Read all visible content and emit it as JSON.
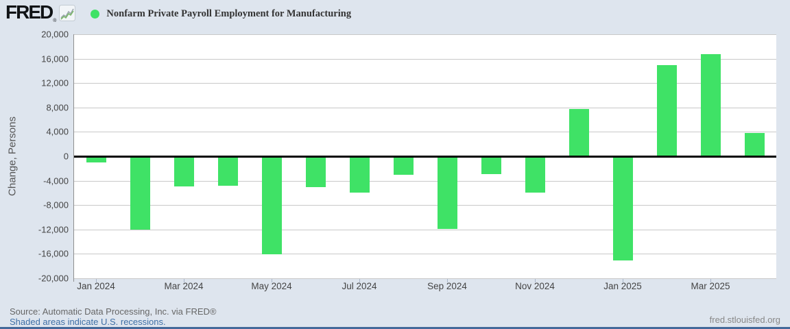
{
  "header": {
    "logo_text": "FRED",
    "logo_registered": "®",
    "title": "Nonfarm Private Payroll Employment for Manufacturing"
  },
  "footer": {
    "source": "Source: Automatic Data Processing, Inc. via FRED®",
    "recession_note": "Shaded areas indicate U.S. recessions.",
    "site": "fred.stlouisfed.org"
  },
  "colors": {
    "bar_green": "#3fe266",
    "background": "#dee5ee",
    "zero_line": "#000000",
    "gridline": "#c8c8c8",
    "link_blue": "#3e6fa6"
  },
  "chart_data": {
    "type": "bar",
    "title": "Nonfarm Private Payroll Employment for Manufacturing",
    "ylabel": "Change, Persons",
    "xlabel": "",
    "legend": [
      "Nonfarm Private Payroll Employment for Manufacturing"
    ],
    "legend_position": "top-left",
    "grid": "horizontal",
    "bar_color": "#3fe266",
    "ylim": [
      -20000,
      20000
    ],
    "ytick_step": 4000,
    "ytick_labels": [
      "20,000",
      "16,000",
      "12,000",
      "8,000",
      "4,000",
      "0",
      "-4,000",
      "-8,000",
      "-12,000",
      "-16,000",
      "-20,000"
    ],
    "categories": [
      "Jan 2024",
      "Feb 2024",
      "Mar 2024",
      "Apr 2024",
      "May 2024",
      "Jun 2024",
      "Jul 2024",
      "Aug 2024",
      "Sep 2024",
      "Oct 2024",
      "Nov 2024",
      "Dec 2024",
      "Jan 2025",
      "Feb 2025",
      "Mar 2025",
      "Apr 2025"
    ],
    "values": [
      -1000,
      -12000,
      -4900,
      -4800,
      -16100,
      -5000,
      -6000,
      -3000,
      -11900,
      -2900,
      -6000,
      7800,
      -17100,
      14900,
      16700,
      3800
    ],
    "xtick_labels": [
      "Jan 2024",
      "Mar 2024",
      "May 2024",
      "Jul 2024",
      "Sep 2024",
      "Nov 2024",
      "Jan 2025",
      "Mar 2025"
    ],
    "xtick_every": 2
  }
}
